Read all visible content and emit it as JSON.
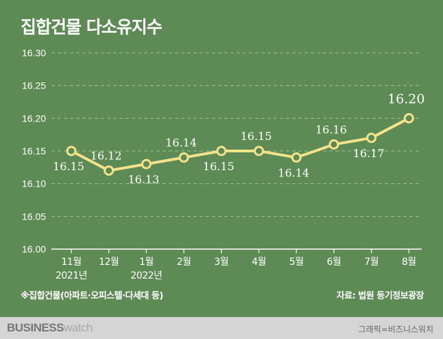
{
  "title": "집합건물 다소유지수",
  "footnote": "※집합건물(아파트·오피스텔·다세대 등)",
  "source": "자료: 법원 등기정보광장",
  "brand": {
    "part1": "BUSINESS",
    "part2": "watch"
  },
  "credit": "그래픽=비즈니스워치",
  "colors": {
    "background": "#5e8b55",
    "line": "#f2e38a",
    "marker_fill": "#5e8b55",
    "grid": "#9fbf93"
  },
  "chart_data": {
    "type": "line",
    "categories": [
      "11월\n2021년",
      "12월",
      "1월\n2022년",
      "2월",
      "3월",
      "4월",
      "5월",
      "6월",
      "7월",
      "8월"
    ],
    "series": [
      {
        "values": [
          16.15,
          16.12,
          16.13,
          16.14,
          16.15,
          16.15,
          16.14,
          16.16,
          16.17,
          16.2
        ]
      }
    ],
    "data_labels": [
      "16.15",
      "16.12",
      "16.13",
      "16.14",
      "16.15",
      "16.15",
      "16.14",
      "16.16",
      "16.17",
      "16.20"
    ],
    "yticks": [
      "16.30",
      "16.25",
      "16.20",
      "16.15",
      "16.10",
      "16.05",
      "16.00"
    ],
    "ylim": [
      16.0,
      16.3
    ],
    "grid": true,
    "legend": "none"
  }
}
